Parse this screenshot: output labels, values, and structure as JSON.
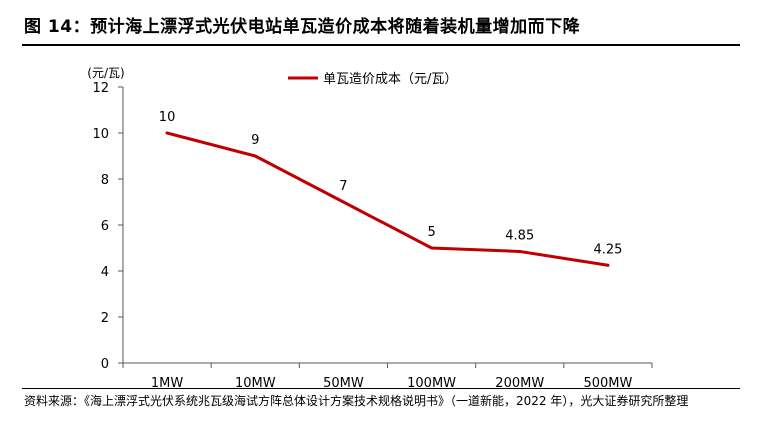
{
  "figure": {
    "title": "图 14：预计海上漂浮式光伏电站单瓦造价成本将随着装机量增加而下降",
    "source": "资料来源：《海上漂浮式光伏系统兆瓦级海试方阵总体设计方案技术规格说明书》（一道新能，2022 年），光大证券研究所整理"
  },
  "chart_data": {
    "type": "line",
    "categories": [
      "1MW",
      "10MW",
      "50MW",
      "100MW",
      "200MW",
      "500MW"
    ],
    "series": [
      {
        "name": "单瓦造价成本（元/瓦）",
        "values": [
          10,
          9,
          7,
          5,
          4.85,
          4.25
        ],
        "color": "#c00000"
      }
    ],
    "data_labels": [
      "10",
      "9",
      "7",
      "5",
      "4.85",
      "4.25"
    ],
    "ylabel": "(元/瓦)",
    "ylim": [
      0,
      12
    ],
    "yticks": [
      0,
      2,
      4,
      6,
      8,
      10,
      12
    ],
    "grid": false,
    "legend": "top-center"
  }
}
